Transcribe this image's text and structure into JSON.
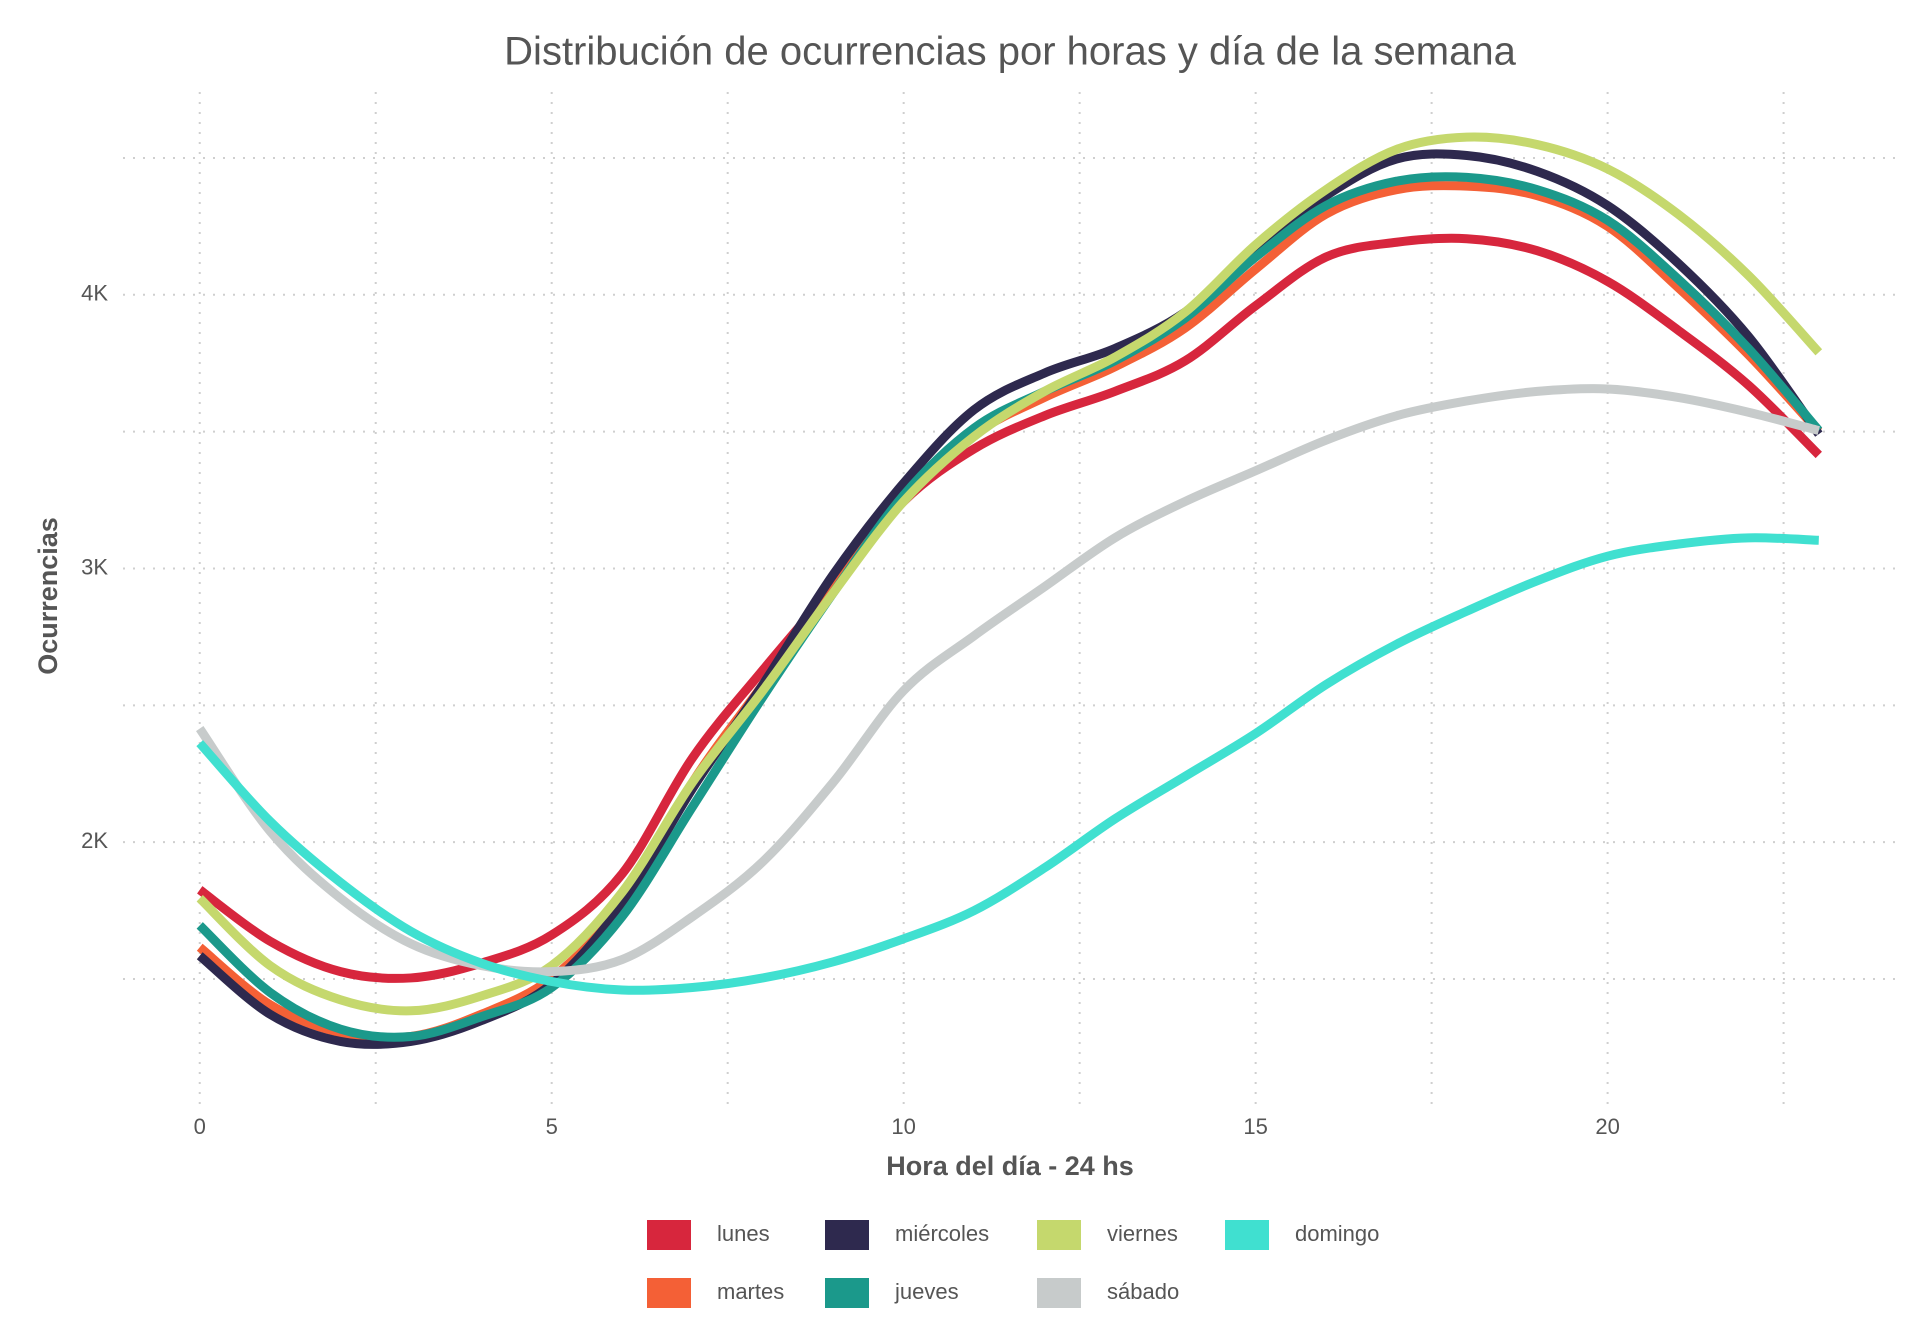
{
  "chart_data": {
    "type": "line",
    "title": "Distribución de ocurrencias por horas y día de la semana",
    "xlabel": "Hora del día - 24 hs",
    "ylabel": "Ocurrencias",
    "x": [
      0,
      1,
      2,
      3,
      4,
      5,
      6,
      7,
      8,
      9,
      10,
      11,
      12,
      13,
      14,
      15,
      16,
      17,
      18,
      19,
      20,
      21,
      22,
      23
    ],
    "xlim": [
      -1.09,
      24.04
    ],
    "xticks": [
      0,
      5,
      10,
      15,
      20
    ],
    "minor_xticks": [
      2.5,
      7.5,
      12.5,
      17.5,
      22.5
    ],
    "ylim": [
      1058,
      4741
    ],
    "yticks": [
      {
        "value": 2000,
        "label": "2K"
      },
      {
        "value": 3000,
        "label": "3K"
      },
      {
        "value": 4000,
        "label": "4K"
      }
    ],
    "minor_yticks": [
      1500,
      2500,
      3500,
      4500
    ],
    "grid": true,
    "legend": "bottom",
    "series": [
      {
        "name": "lunes",
        "color": "#d7263d",
        "values": [
          1826,
          1638,
          1527,
          1504,
          1558,
          1661,
          1884,
          2308,
          2629,
          2933,
          3245,
          3437,
          3558,
          3647,
          3759,
          3960,
          4138,
          4192,
          4205,
          4161,
          4049,
          3871,
          3670,
          3415
        ]
      },
      {
        "name": "martes",
        "color": "#f46036",
        "values": [
          1616,
          1406,
          1304,
          1290,
          1371,
          1504,
          1772,
          2219,
          2576,
          2933,
          3268,
          3491,
          3625,
          3737,
          3879,
          4094,
          4295,
          4384,
          4397,
          4362,
          4250,
          4027,
          3781,
          3500
        ]
      },
      {
        "name": "miércoles",
        "color": "#2e294e",
        "values": [
          1585,
          1371,
          1272,
          1272,
          1348,
          1482,
          1772,
          2196,
          2576,
          2978,
          3312,
          3580,
          3714,
          3804,
          3937,
          4161,
          4362,
          4496,
          4509,
          4451,
          4326,
          4116,
          3848,
          3491
        ]
      },
      {
        "name": "jueves",
        "color": "#1b998b",
        "values": [
          1696,
          1451,
          1317,
          1290,
          1362,
          1469,
          1728,
          2129,
          2531,
          2911,
          3268,
          3513,
          3647,
          3759,
          3915,
          4138,
          4326,
          4415,
          4429,
          4384,
          4272,
          4058,
          3804,
          3504
        ]
      },
      {
        "name": "viernes",
        "color": "#c5d86d",
        "values": [
          1795,
          1549,
          1424,
          1384,
          1438,
          1549,
          1817,
          2219,
          2554,
          2911,
          3245,
          3482,
          3647,
          3772,
          3937,
          4183,
          4384,
          4531,
          4576,
          4549,
          4460,
          4295,
          4071,
          3790
        ]
      },
      {
        "name": "sábado",
        "color": "#c7cbcb",
        "values": [
          2415,
          2040,
          1795,
          1629,
          1549,
          1527,
          1571,
          1728,
          1929,
          2219,
          2554,
          2754,
          2933,
          3112,
          3245,
          3357,
          3469,
          3558,
          3612,
          3647,
          3656,
          3625,
          3571,
          3504
        ]
      },
      {
        "name": "domingo",
        "color": "#40e0d0",
        "values": [
          2362,
          2076,
          1853,
          1674,
          1558,
          1491,
          1460,
          1469,
          1504,
          1563,
          1647,
          1750,
          1906,
          2085,
          2241,
          2397,
          2576,
          2723,
          2844,
          2955,
          3045,
          3089,
          3112,
          3103
        ]
      }
    ]
  }
}
